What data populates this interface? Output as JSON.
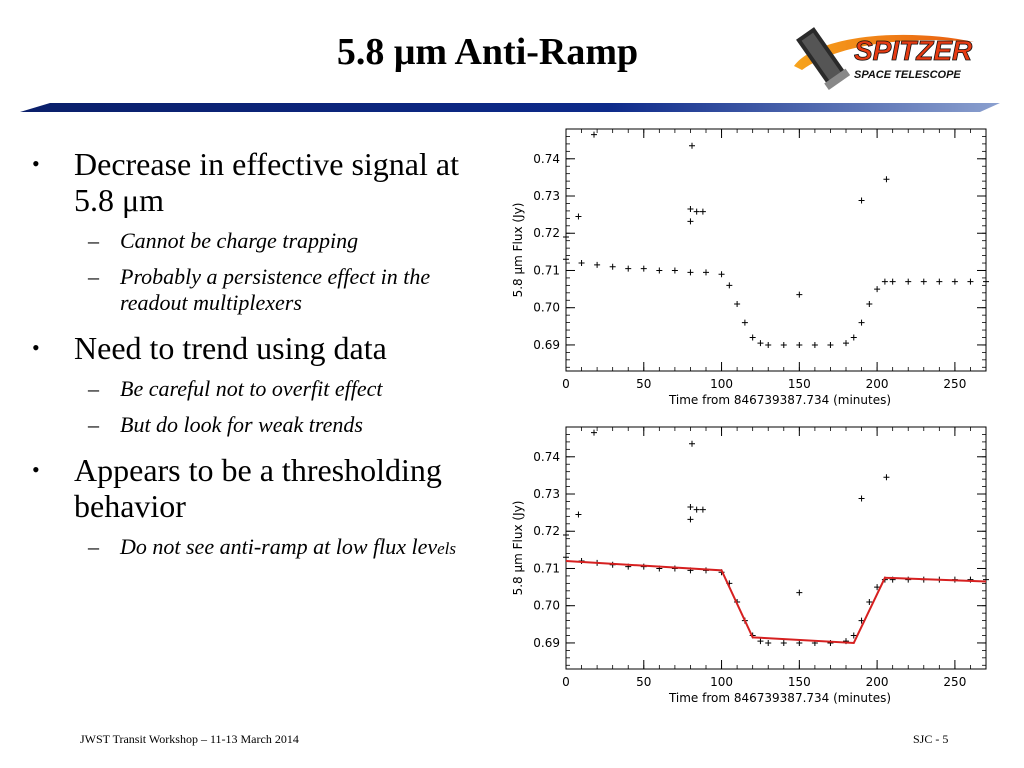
{
  "slide": {
    "title": "5.8 μm Anti-Ramp",
    "logo": {
      "line1": "SPITZER",
      "line2": "SPACE TELESCOPE"
    },
    "bullets": [
      {
        "text": "Decrease in effective signal at 5.8 μm",
        "subs": [
          "Cannot be charge trapping",
          "Probably a persistence effect in the readout multiplexers"
        ]
      },
      {
        "text": "Need to trend using data",
        "subs": [
          "Be careful not to overfit effect",
          "But do look for weak trends"
        ]
      },
      {
        "text": "Appears to be a thresholding behavior",
        "subs": [
          "Do not see anti-ramp at low flux lev",
          "els"
        ]
      }
    ],
    "footer_left": "JWST Transit Workshop – 11-13 March 2014",
    "footer_right": "SJC - 5"
  },
  "chart_data": [
    {
      "type": "scatter",
      "xlabel": "Time from   846739387.734 (minutes)",
      "ylabel": "5.8 μm Flux (Jy)",
      "xlim": [
        0,
        270
      ],
      "ylim": [
        0.683,
        0.748
      ],
      "xticks": [
        0,
        50,
        100,
        150,
        200,
        250
      ],
      "yticks": [
        0.69,
        0.7,
        0.71,
        0.72,
        0.73,
        0.74
      ],
      "marker_color": "#000000",
      "series": [
        {
          "x": [
            0,
            10,
            20,
            30,
            40,
            50,
            60,
            70,
            80,
            90,
            100,
            105,
            110,
            115,
            120,
            125,
            130,
            140,
            150,
            160,
            170,
            180,
            185,
            190,
            195,
            200,
            205,
            210,
            220,
            230,
            240,
            250,
            260,
            270
          ],
          "y": [
            0.713,
            0.712,
            0.7115,
            0.711,
            0.7105,
            0.7105,
            0.71,
            0.71,
            0.7095,
            0.7095,
            0.709,
            0.706,
            0.701,
            0.696,
            0.692,
            0.6905,
            0.69,
            0.69,
            0.69,
            0.69,
            0.69,
            0.6905,
            0.692,
            0.696,
            0.701,
            0.705,
            0.707,
            0.707,
            0.707,
            0.707,
            0.707,
            0.707,
            0.707,
            0.707
          ]
        },
        {
          "x": [
            0,
            8,
            18,
            80,
            80,
            81,
            84,
            88,
            150,
            190,
            206
          ],
          "y": [
            0.719,
            0.7245,
            0.7465,
            0.7265,
            0.7232,
            0.7435,
            0.7258,
            0.7258,
            0.7035,
            0.7288,
            0.7345
          ]
        }
      ]
    },
    {
      "type": "scatter",
      "xlabel": "Time from   846739387.734 (minutes)",
      "ylabel": "5.8 μm Flux (Jy)",
      "xlim": [
        0,
        270
      ],
      "ylim": [
        0.683,
        0.748
      ],
      "xticks": [
        0,
        50,
        100,
        150,
        200,
        250
      ],
      "yticks": [
        0.69,
        0.7,
        0.71,
        0.72,
        0.73,
        0.74
      ],
      "marker_color": "#000000",
      "fit_color": "#d62020",
      "series": [
        {
          "x": [
            0,
            10,
            20,
            30,
            40,
            50,
            60,
            70,
            80,
            90,
            100,
            105,
            110,
            115,
            120,
            125,
            130,
            140,
            150,
            160,
            170,
            180,
            185,
            190,
            195,
            200,
            205,
            210,
            220,
            230,
            240,
            250,
            260,
            270
          ],
          "y": [
            0.713,
            0.712,
            0.7115,
            0.711,
            0.7105,
            0.7105,
            0.71,
            0.71,
            0.7095,
            0.7095,
            0.709,
            0.706,
            0.701,
            0.696,
            0.692,
            0.6905,
            0.69,
            0.69,
            0.69,
            0.69,
            0.69,
            0.6905,
            0.692,
            0.696,
            0.701,
            0.705,
            0.707,
            0.707,
            0.707,
            0.707,
            0.707,
            0.707,
            0.707,
            0.707
          ]
        },
        {
          "x": [
            0,
            8,
            18,
            80,
            80,
            81,
            84,
            88,
            150,
            190,
            206
          ],
          "y": [
            0.719,
            0.7245,
            0.7465,
            0.7265,
            0.7232,
            0.7435,
            0.7258,
            0.7258,
            0.7035,
            0.7288,
            0.7345
          ]
        }
      ],
      "fit": {
        "x": [
          0,
          100,
          120,
          185,
          205,
          270
        ],
        "y": [
          0.712,
          0.7095,
          0.6915,
          0.69,
          0.7075,
          0.7065
        ]
      }
    }
  ]
}
